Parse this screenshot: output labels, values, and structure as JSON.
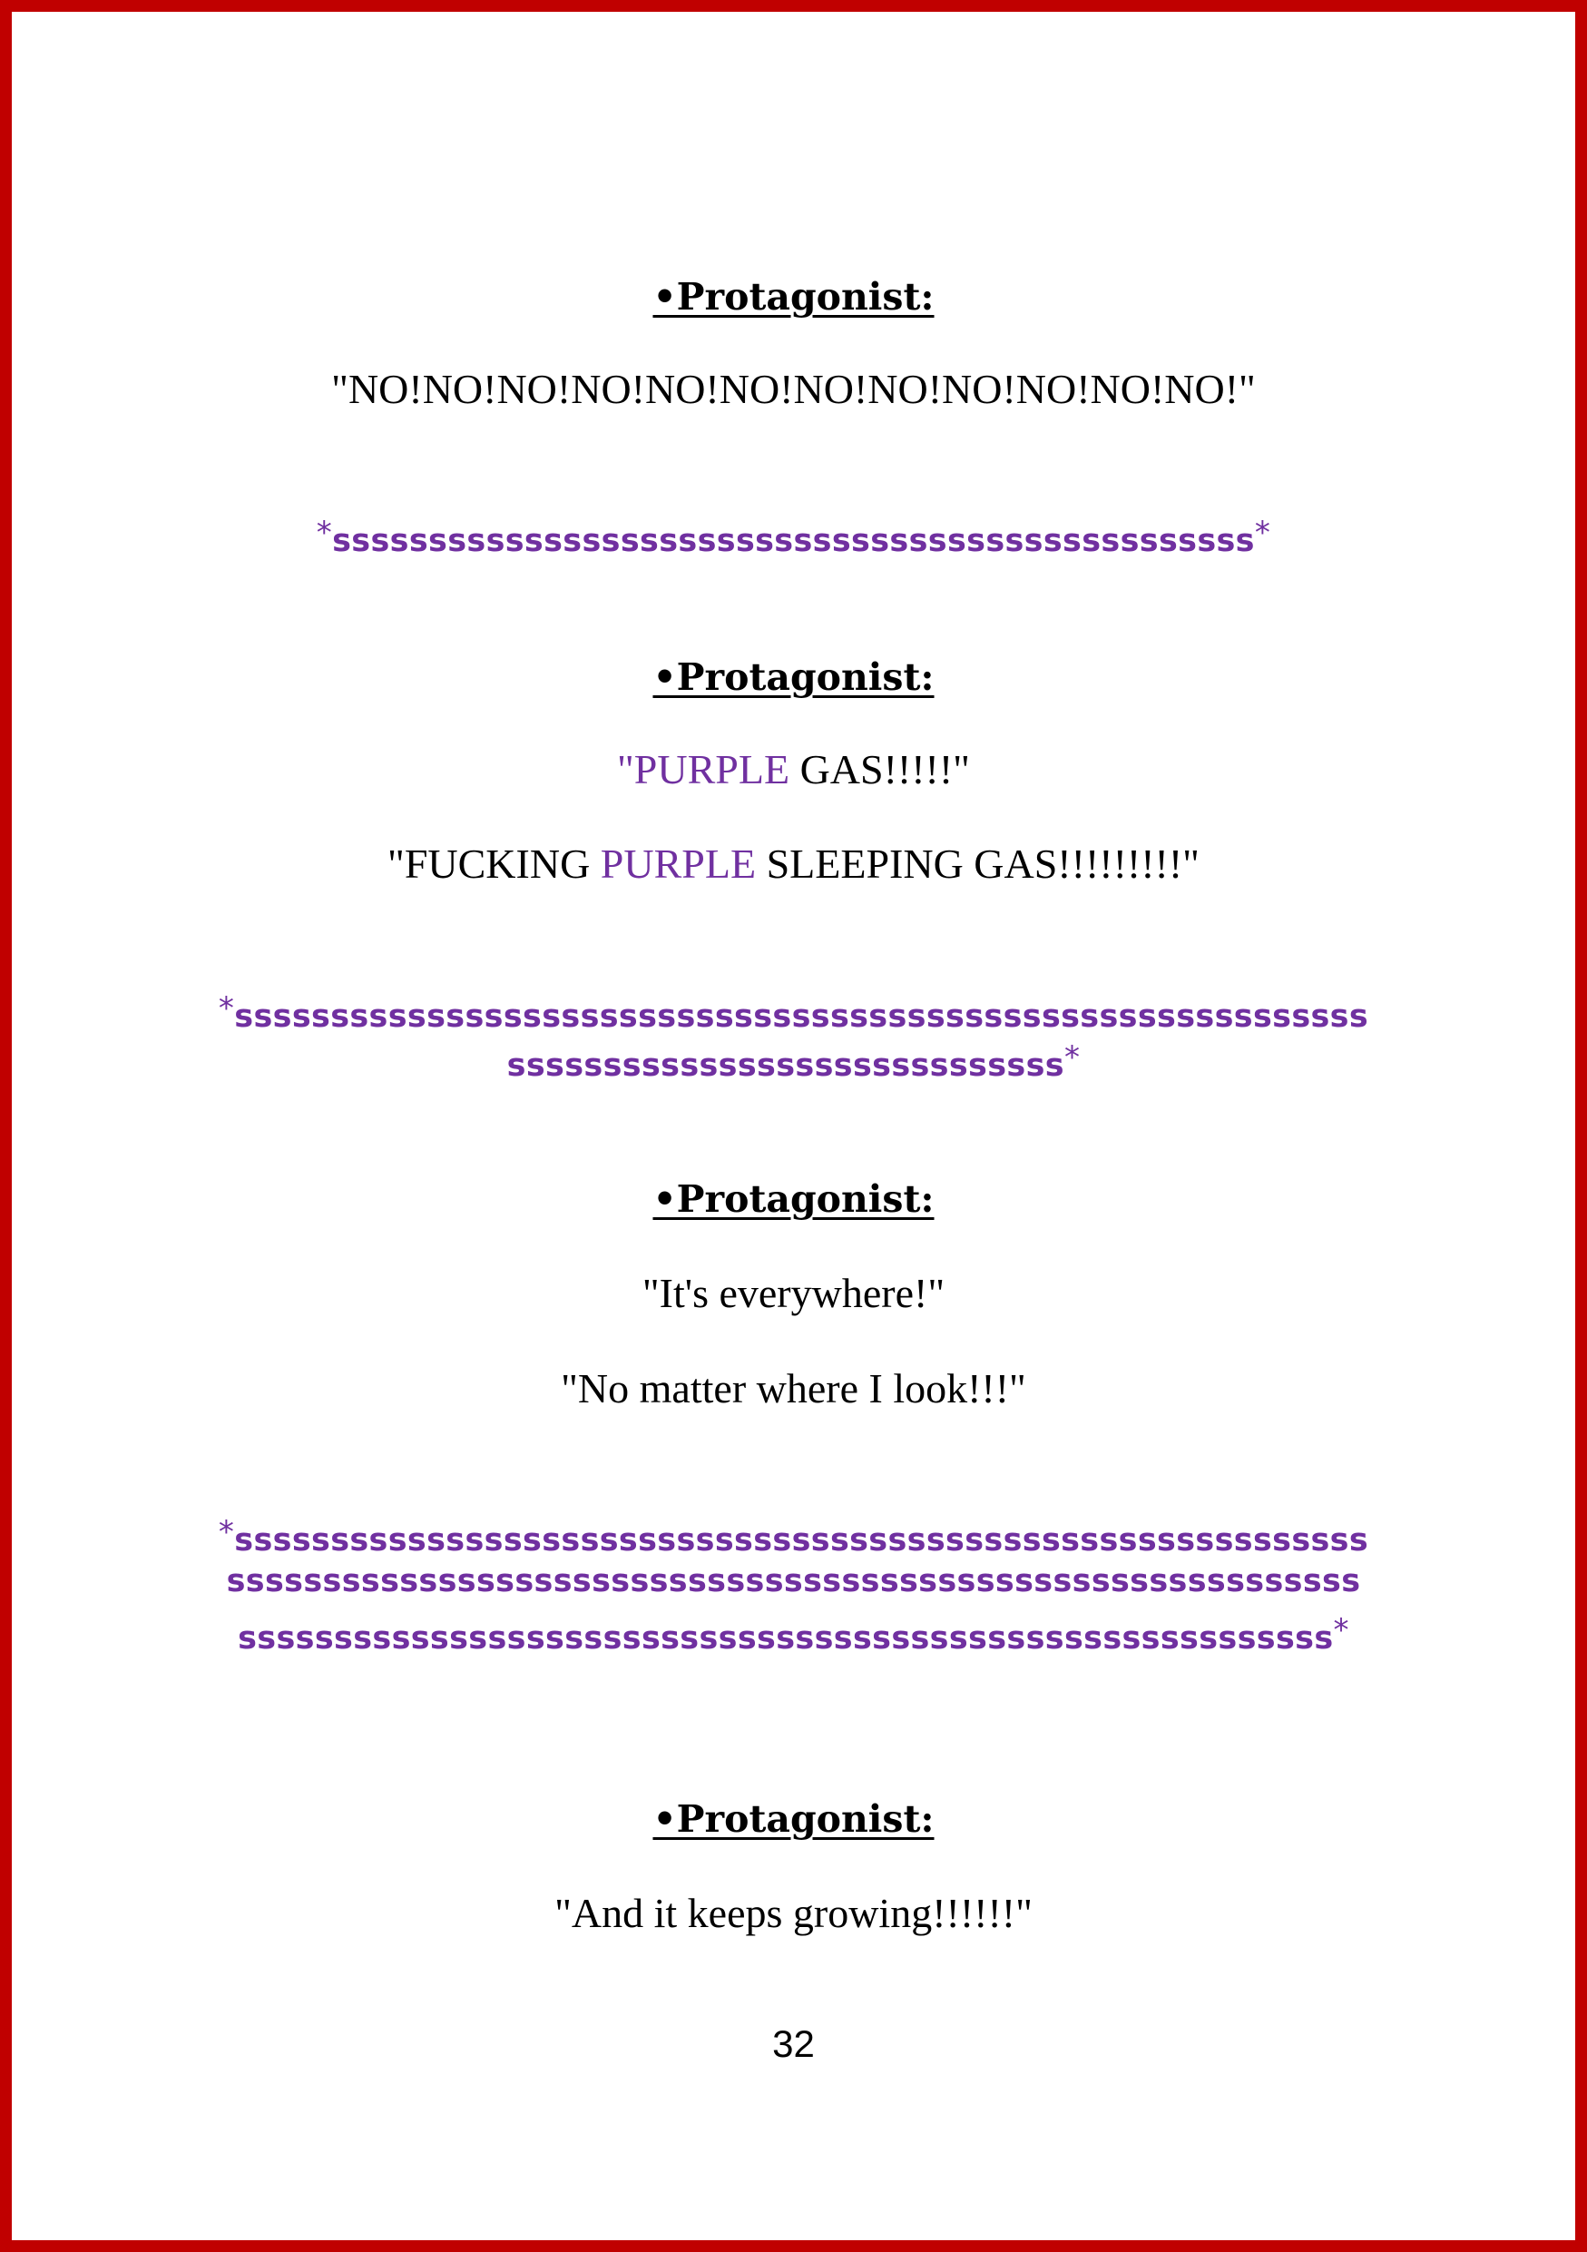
{
  "speaker_label": "•Protagonist:",
  "blocks": {
    "b1": {
      "line1": "\"NO!NO!NO!NO!NO!NO!NO!NO!NO!NO!NO!NO!\""
    },
    "sfx1": {
      "star_open": "*",
      "line1": "ssssssssssssssssssssssssssssssssssssssssssssssss",
      "star_close": "*"
    },
    "b2": {
      "line1_open_quote": "\"",
      "line1_highlight": "PURPLE",
      "line1_rest": " GAS!!!!!\"",
      "line2_start": "\"FUCKING ",
      "line2_highlight": "PURPLE",
      "line2_rest": " SLEEPING GAS!!!!!!!!!\""
    },
    "sfx2": {
      "star_open": "*",
      "line1": "sssssssssssssssssssssssssssssssssssssssssssssssssssssssssss",
      "line2": "sssssssssssssssssssssssssssss",
      "star_close": "*"
    },
    "b3": {
      "line1": "\"It's everywhere!\"",
      "line2": "\"No matter where I look!!!\""
    },
    "sfx3": {
      "star_open": "*",
      "line1": "sssssssssssssssssssssssssssssssssssssssssssssssssssssssssss",
      "line2": "sssssssssssssssssssssssssssssssssssssssssssssssssssssssssss",
      "line3": "sssssssssssssssssssssssssssssssssssssssssssssssssssssssss",
      "star_close": "*"
    },
    "b4": {
      "line1": "\"And it keeps growing!!!!!!\""
    }
  },
  "page_number": "32",
  "colors": {
    "frame": "#c00000",
    "sfx": "#7030a0",
    "text": "#000000"
  }
}
